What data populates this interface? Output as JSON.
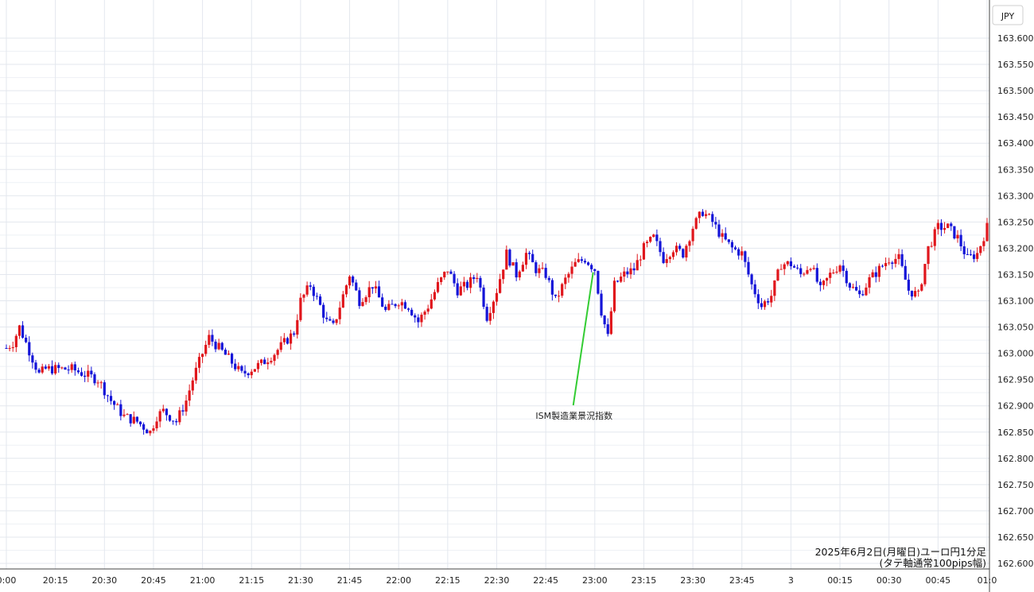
{
  "chart_data": {
    "type": "candlestick",
    "currency_label": "JPY",
    "ylim": [
      162.6,
      163.6
    ],
    "y_ticks": [
      "163.600",
      "163.550",
      "163.500",
      "163.450",
      "163.400",
      "163.350",
      "163.300",
      "163.250",
      "163.200",
      "163.150",
      "163.100",
      "163.050",
      "163.000",
      "162.950",
      "162.900",
      "162.850",
      "162.800",
      "162.750",
      "162.700",
      "162.650",
      "162.600"
    ],
    "x_ticks": [
      "0:00",
      "20:15",
      "20:30",
      "20:45",
      "21:00",
      "21:15",
      "21:30",
      "21:45",
      "22:00",
      "22:15",
      "22:30",
      "22:45",
      "23:00",
      "23:15",
      "23:30",
      "23:45",
      "3",
      "00:15",
      "00:30",
      "00:45",
      "01:0"
    ],
    "annotation": {
      "text": "ISM製造業景況指数",
      "time": "23:00"
    },
    "caption": {
      "line1": "2025年6月2日(月曜日)ユーロ円1分足",
      "line2": "(タテ軸通常100pips幅)"
    },
    "colors": {
      "up": "#e0161c",
      "down": "#1414d8",
      "annotation_line": "#33cc33"
    },
    "price_path": [
      [
        "20:00",
        163.01
      ],
      [
        "20:02",
        163.02
      ],
      [
        "20:04",
        163.05
      ],
      [
        "20:06",
        163.02
      ],
      [
        "20:08",
        162.99
      ],
      [
        "20:10",
        162.96
      ],
      [
        "20:12",
        162.97
      ],
      [
        "20:15",
        162.97
      ],
      [
        "20:20",
        162.97
      ],
      [
        "20:24",
        162.96
      ],
      [
        "20:28",
        162.95
      ],
      [
        "20:32",
        162.91
      ],
      [
        "20:36",
        162.88
      ],
      [
        "20:40",
        162.87
      ],
      [
        "20:44",
        162.85
      ],
      [
        "20:46",
        162.88
      ],
      [
        "20:48",
        162.89
      ],
      [
        "20:52",
        162.87
      ],
      [
        "20:55",
        162.91
      ],
      [
        "20:57",
        162.95
      ],
      [
        "21:00",
        163.0
      ],
      [
        "21:02",
        163.03
      ],
      [
        "21:05",
        163.01
      ],
      [
        "21:08",
        162.99
      ],
      [
        "21:12",
        162.96
      ],
      [
        "21:15",
        162.97
      ],
      [
        "21:18",
        162.98
      ],
      [
        "21:22",
        163.0
      ],
      [
        "21:25",
        163.02
      ],
      [
        "21:28",
        163.04
      ],
      [
        "21:30",
        163.1
      ],
      [
        "21:33",
        163.13
      ],
      [
        "21:36",
        163.09
      ],
      [
        "21:38",
        163.06
      ],
      [
        "21:40",
        163.05
      ],
      [
        "21:43",
        163.11
      ],
      [
        "21:45",
        163.15
      ],
      [
        "21:48",
        163.1
      ],
      [
        "21:52",
        163.13
      ],
      [
        "21:56",
        163.08
      ],
      [
        "22:00",
        163.1
      ],
      [
        "22:03",
        163.09
      ],
      [
        "22:06",
        163.06
      ],
      [
        "22:09",
        163.09
      ],
      [
        "22:12",
        163.13
      ],
      [
        "22:15",
        163.16
      ],
      [
        "22:18",
        163.12
      ],
      [
        "22:21",
        163.13
      ],
      [
        "22:24",
        163.15
      ],
      [
        "22:27",
        163.07
      ],
      [
        "22:30",
        163.12
      ],
      [
        "22:33",
        163.19
      ],
      [
        "22:36",
        163.15
      ],
      [
        "22:39",
        163.19
      ],
      [
        "22:42",
        163.16
      ],
      [
        "22:45",
        163.15
      ],
      [
        "22:48",
        163.1
      ],
      [
        "22:51",
        163.14
      ],
      [
        "22:54",
        163.17
      ],
      [
        "22:57",
        163.18
      ],
      [
        "23:00",
        163.16
      ],
      [
        "23:02",
        163.08
      ],
      [
        "23:04",
        163.03
      ],
      [
        "23:06",
        163.13
      ],
      [
        "23:09",
        163.15
      ],
      [
        "23:12",
        163.16
      ],
      [
        "23:15",
        163.2
      ],
      [
        "23:18",
        163.22
      ],
      [
        "23:21",
        163.18
      ],
      [
        "23:24",
        163.2
      ],
      [
        "23:27",
        163.19
      ],
      [
        "23:30",
        163.24
      ],
      [
        "23:33",
        163.27
      ],
      [
        "23:36",
        163.25
      ],
      [
        "23:39",
        163.22
      ],
      [
        "23:42",
        163.2
      ],
      [
        "23:45",
        163.19
      ],
      [
        "23:48",
        163.13
      ],
      [
        "23:51",
        163.09
      ],
      [
        "23:54",
        163.11
      ],
      [
        "23:57",
        163.17
      ],
      [
        "00:00",
        163.17
      ],
      [
        "00:03",
        163.15
      ],
      [
        "00:06",
        163.17
      ],
      [
        "00:09",
        163.12
      ],
      [
        "00:12",
        163.15
      ],
      [
        "00:15",
        163.17
      ],
      [
        "00:18",
        163.13
      ],
      [
        "00:21",
        163.11
      ],
      [
        "00:24",
        163.14
      ],
      [
        "00:27",
        163.16
      ],
      [
        "00:30",
        163.18
      ],
      [
        "00:33",
        163.18
      ],
      [
        "00:36",
        163.12
      ],
      [
        "00:39",
        163.11
      ],
      [
        "00:42",
        163.2
      ],
      [
        "00:45",
        163.24
      ],
      [
        "00:48",
        163.24
      ],
      [
        "00:51",
        163.22
      ],
      [
        "00:54",
        163.18
      ],
      [
        "00:57",
        163.19
      ],
      [
        "01:00",
        163.24
      ]
    ]
  }
}
